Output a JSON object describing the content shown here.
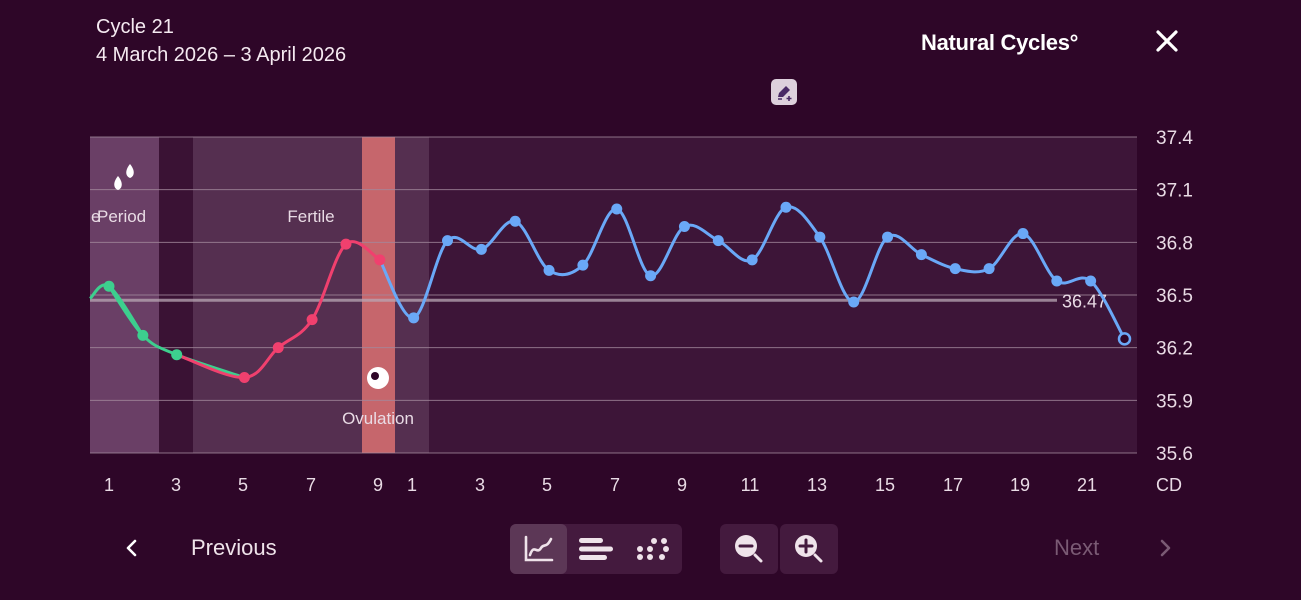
{
  "header": {
    "cycle_title": "Cycle 21",
    "cycle_range": "4 March 2026 – 3 April 2026"
  },
  "brand": "Natural Cycles°",
  "icons": {
    "close": "close-icon",
    "add_note": "pencil-plus-icon",
    "period": "drops-icon",
    "ovulation": "egg-icon",
    "prev": "chevron-left-icon",
    "next": "chevron-right-icon",
    "view_curve": "line-graph-icon",
    "view_bars": "bars-icon",
    "view_dots": "dots-icon",
    "zoom_out": "zoom-out-icon",
    "zoom_in": "zoom-in-icon"
  },
  "chart_data": {
    "type": "line",
    "y_ticks": [
      "37.4",
      "37.1",
      "36.8",
      "36.5",
      "36.2",
      "35.9",
      "35.6"
    ],
    "ylim": [
      35.6,
      37.4
    ],
    "x_unit_label": "CD",
    "x_tick_labels": [
      "1",
      "3",
      "5",
      "7",
      "9",
      "1",
      "3",
      "5",
      "7",
      "9",
      "11",
      "13",
      "15",
      "17",
      "19",
      "21"
    ],
    "average_line": {
      "value": 36.47,
      "label": "36.47"
    },
    "phase_labels": {
      "period_prev_fragment": "e",
      "period": "Period",
      "fertile": "Fertile",
      "ovulation": "Ovulation"
    },
    "previous_cycle": {
      "start_day": 0,
      "green_days": [
        1,
        2,
        3
      ],
      "green_values": [
        36.55,
        36.27,
        36.16
      ],
      "red_days": [
        5,
        6,
        7,
        8,
        9
      ],
      "red_values": [
        36.03,
        36.2,
        36.36,
        36.79,
        36.7
      ],
      "blue_days": [
        10
      ],
      "blue_values": [
        36.37
      ]
    },
    "current_cycle": {
      "days": [
        1,
        2,
        3,
        4,
        5,
        6,
        7,
        8,
        9,
        10,
        11,
        12,
        13,
        14,
        15,
        16,
        17,
        18,
        19,
        20,
        21
      ],
      "values": [
        36.81,
        36.76,
        36.92,
        36.64,
        36.67,
        36.99,
        36.61,
        36.89,
        36.81,
        36.7,
        37.0,
        36.83,
        36.46,
        36.83,
        36.73,
        36.65,
        36.65,
        36.85,
        36.58,
        36.58,
        36.25
      ],
      "last_hollow": true
    },
    "colors": {
      "green": "#3dcf8e",
      "red": "#f0406e",
      "blue": "#6aa8f7",
      "ovulation_band": "#e07878"
    }
  },
  "nav": {
    "previous_label": "Previous",
    "next_label": "Next"
  }
}
